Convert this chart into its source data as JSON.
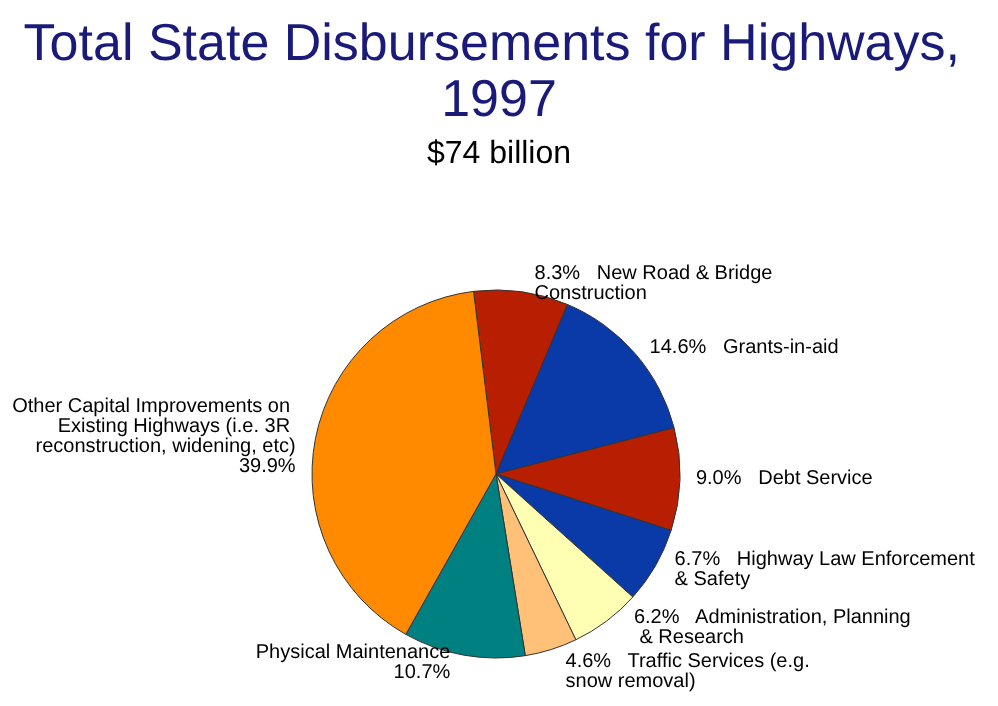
{
  "chart_data": {
    "type": "pie",
    "title": "Total State Disbursements for Highways, 1997",
    "subtitle": "$74 billion",
    "categories": [
      "New Road & Bridge Construction",
      "Grants-in-aid",
      "Debt Service",
      "Highway Law Enforcement & Safety",
      "Administration, Planning & Research",
      "Traffic Services (e.g. snow removal)",
      "Physical Maintenance",
      "Other Capital Improvements on Existing Highways (i.e. 3R reconstruction, widening, etc)"
    ],
    "values": [
      8.3,
      14.6,
      9.0,
      6.7,
      6.2,
      4.6,
      10.7,
      39.9
    ],
    "value_labels": [
      "8.3%",
      "14.6%",
      "9.0%",
      "6.7%",
      "6.2%",
      "4.6%",
      "10.7%",
      "39.9%"
    ],
    "colors": [
      "#b81e00",
      "#0a3aa8",
      "#b81e00",
      "#0a3aa8",
      "#ffffb4",
      "#ffc078",
      "#008080",
      "#ff8a00"
    ],
    "legend": false
  }
}
